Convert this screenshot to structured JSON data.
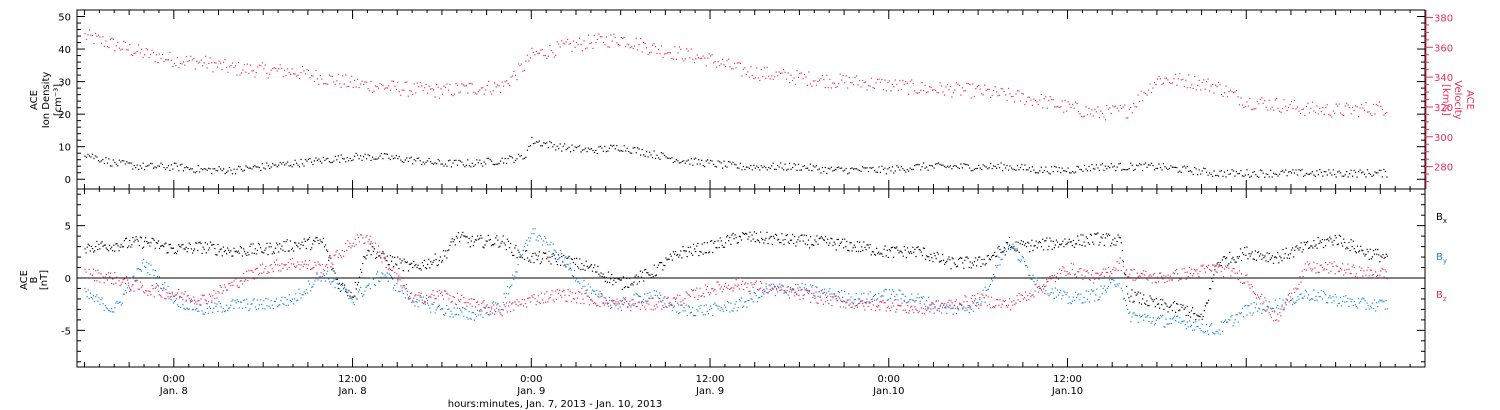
{
  "chart_data": [
    {
      "type": "scatter",
      "panel": "ion-density-velocity",
      "ylabel_left": [
        "ACE",
        "Ion Density",
        "[cm⁻³]"
      ],
      "ylabel_right": [
        "ACE",
        "Velocity",
        "[km/s]"
      ],
      "ylim_left": [
        -3,
        52
      ],
      "yticks_left": [
        0,
        10,
        20,
        30,
        40,
        50
      ],
      "ylim_right": [
        265,
        385
      ],
      "yticks_right": [
        280,
        300,
        320,
        340,
        360,
        380
      ],
      "xlim_hours": [
        -6.5,
        84
      ],
      "series": [
        {
          "axis": "right",
          "color": "#e8305e",
          "points": [
            [
              -6,
              368
            ],
            [
              -4,
              362
            ],
            [
              -2,
              356
            ],
            [
              0,
              352
            ],
            [
              2,
              350
            ],
            [
              4,
              346
            ],
            [
              6,
              345
            ],
            [
              8,
              344
            ],
            [
              10,
              340
            ],
            [
              12,
              336
            ],
            [
              14,
              334
            ],
            [
              16,
              332
            ],
            [
              18,
              331
            ],
            [
              20,
              333
            ],
            [
              22,
              334
            ],
            [
              23.5,
              348
            ],
            [
              24,
              355
            ],
            [
              26,
              360
            ],
            [
              28,
              364
            ],
            [
              30,
              366
            ],
            [
              32,
              360
            ],
            [
              34,
              356
            ],
            [
              36,
              352
            ],
            [
              38,
              345
            ],
            [
              40,
              342
            ],
            [
              42,
              340
            ],
            [
              44,
              338
            ],
            [
              46,
              337
            ],
            [
              48,
              335
            ],
            [
              50,
              333
            ],
            [
              52,
              332
            ],
            [
              54,
              331
            ],
            [
              56,
              328
            ],
            [
              58,
              325
            ],
            [
              60,
              320
            ],
            [
              62,
              316
            ],
            [
              64,
              318
            ],
            [
              66,
              339
            ],
            [
              68,
              338
            ],
            [
              70,
              334
            ],
            [
              72,
              324
            ],
            [
              74,
              322
            ],
            [
              76,
              319
            ],
            [
              78,
              318
            ],
            [
              80,
              319
            ],
            [
              81.5,
              320
            ]
          ]
        },
        {
          "axis": "left",
          "color": "#000000",
          "points": [
            [
              -6,
              8
            ],
            [
              -4,
              5
            ],
            [
              -2,
              4
            ],
            [
              0,
              4
            ],
            [
              2,
              3
            ],
            [
              4,
              3
            ],
            [
              6,
              4
            ],
            [
              8,
              5
            ],
            [
              10,
              6
            ],
            [
              12,
              7
            ],
            [
              14,
              7
            ],
            [
              16,
              6
            ],
            [
              18,
              5
            ],
            [
              20,
              5
            ],
            [
              22,
              6
            ],
            [
              23.5,
              7
            ],
            [
              24,
              12
            ],
            [
              26,
              10
            ],
            [
              28,
              9
            ],
            [
              30,
              10
            ],
            [
              32,
              8
            ],
            [
              34,
              6
            ],
            [
              36,
              5
            ],
            [
              38,
              4
            ],
            [
              40,
              4
            ],
            [
              42,
              4
            ],
            [
              44,
              3
            ],
            [
              46,
              3
            ],
            [
              48,
              3
            ],
            [
              50,
              4
            ],
            [
              52,
              4
            ],
            [
              54,
              4
            ],
            [
              56,
              4
            ],
            [
              58,
              3
            ],
            [
              60,
              3
            ],
            [
              62,
              4
            ],
            [
              64,
              4
            ],
            [
              66,
              4
            ],
            [
              68,
              3
            ],
            [
              70,
              2
            ],
            [
              72,
              2
            ],
            [
              74,
              2
            ],
            [
              76,
              2
            ],
            [
              78,
              2
            ],
            [
              80,
              2
            ],
            [
              81.5,
              2
            ]
          ]
        }
      ]
    },
    {
      "type": "scatter",
      "panel": "magnetic-field",
      "ylabel_left": [
        "ACE",
        "B",
        "[nT]"
      ],
      "ylim": [
        -8.5,
        8.5
      ],
      "yticks": [
        -5,
        0,
        5
      ],
      "zero_line": true,
      "xlim_hours": [
        -6.5,
        84
      ],
      "series": [
        {
          "name": "Bx",
          "label_main": "B",
          "label_sub": "x",
          "color": "#000000",
          "points": [
            [
              -6,
              3.0
            ],
            [
              -4,
              3.2
            ],
            [
              -2,
              3.5
            ],
            [
              0,
              2.8
            ],
            [
              2,
              3.0
            ],
            [
              4,
              2.6
            ],
            [
              6,
              2.8
            ],
            [
              8,
              3.2
            ],
            [
              10,
              3.5
            ],
            [
              11,
              -0.5
            ],
            [
              12,
              -1.5
            ],
            [
              13,
              3.0
            ],
            [
              14,
              2.0
            ],
            [
              16,
              1.0
            ],
            [
              18,
              2.0
            ],
            [
              19,
              4.0
            ],
            [
              20,
              3.5
            ],
            [
              22,
              3.6
            ],
            [
              23,
              2.5
            ],
            [
              24,
              2.0
            ],
            [
              26,
              1.8
            ],
            [
              28,
              1.0
            ],
            [
              30,
              -0.5
            ],
            [
              32,
              0.5
            ],
            [
              34,
              2.5
            ],
            [
              36,
              3.0
            ],
            [
              38,
              4.0
            ],
            [
              40,
              3.8
            ],
            [
              42,
              3.6
            ],
            [
              44,
              3.4
            ],
            [
              46,
              3.0
            ],
            [
              48,
              2.5
            ],
            [
              50,
              2.6
            ],
            [
              52,
              1.5
            ],
            [
              54,
              1.5
            ],
            [
              56,
              3.0
            ],
            [
              58,
              3.2
            ],
            [
              60,
              3.5
            ],
            [
              62,
              3.8
            ],
            [
              63.5,
              3.6
            ],
            [
              64,
              -1.5
            ],
            [
              66,
              -2.5
            ],
            [
              68,
              -3.0
            ],
            [
              69,
              -4.0
            ],
            [
              70,
              1.5
            ],
            [
              72,
              2.5
            ],
            [
              74,
              2.0
            ],
            [
              76,
              3.0
            ],
            [
              78,
              3.8
            ],
            [
              80,
              2.5
            ],
            [
              81.5,
              2.0
            ]
          ]
        },
        {
          "name": "By",
          "label_main": "B",
          "label_sub": "y",
          "color": "#1c86dc",
          "points": [
            [
              -6,
              -1.5
            ],
            [
              -4,
              -3.0
            ],
            [
              -2,
              1.5
            ],
            [
              0,
              -2.0
            ],
            [
              2,
              -3.0
            ],
            [
              4,
              -2.5
            ],
            [
              6,
              -2.5
            ],
            [
              8,
              -2.0
            ],
            [
              10,
              0.5
            ],
            [
              12,
              -2.0
            ],
            [
              14,
              0.5
            ],
            [
              16,
              -2.0
            ],
            [
              18,
              -3.0
            ],
            [
              20,
              -3.5
            ],
            [
              22,
              -2.5
            ],
            [
              24,
              4.5
            ],
            [
              26,
              2.0
            ],
            [
              28,
              -1.5
            ],
            [
              30,
              -2.5
            ],
            [
              32,
              -1.5
            ],
            [
              34,
              -3.0
            ],
            [
              36,
              -3.0
            ],
            [
              38,
              -2.5
            ],
            [
              40,
              -1.0
            ],
            [
              42,
              -1.0
            ],
            [
              44,
              -1.5
            ],
            [
              46,
              -2.0
            ],
            [
              48,
              -1.5
            ],
            [
              50,
              -2.0
            ],
            [
              52,
              -3.0
            ],
            [
              54,
              -2.5
            ],
            [
              56,
              3.5
            ],
            [
              58,
              -0.5
            ],
            [
              60,
              -2.0
            ],
            [
              62,
              -1.5
            ],
            [
              63.5,
              0.0
            ],
            [
              64,
              -3.5
            ],
            [
              66,
              -4.0
            ],
            [
              68,
              -4.2
            ],
            [
              70,
              -5.0
            ],
            [
              72,
              -3.0
            ],
            [
              74,
              -2.5
            ],
            [
              76,
              -1.5
            ],
            [
              78,
              -2.0
            ],
            [
              80,
              -2.5
            ],
            [
              81.5,
              -2.5
            ]
          ]
        },
        {
          "name": "Bz",
          "label_main": "B",
          "label_sub": "z",
          "color": "#e8305e",
          "points": [
            [
              -6,
              0.5
            ],
            [
              -4,
              0.0
            ],
            [
              -2,
              -1.0
            ],
            [
              0,
              -1.5
            ],
            [
              2,
              -2.0
            ],
            [
              4,
              -0.5
            ],
            [
              6,
              1.0
            ],
            [
              8,
              1.5
            ],
            [
              10,
              1.0
            ],
            [
              12,
              3.5
            ],
            [
              13,
              4.0
            ],
            [
              14,
              2.0
            ],
            [
              16,
              -2.0
            ],
            [
              18,
              -1.5
            ],
            [
              20,
              -2.5
            ],
            [
              22,
              -3.0
            ],
            [
              24,
              -2.0
            ],
            [
              26,
              -1.5
            ],
            [
              28,
              -2.0
            ],
            [
              30,
              -2.5
            ],
            [
              32,
              -2.5
            ],
            [
              34,
              -2.0
            ],
            [
              36,
              -1.0
            ],
            [
              38,
              -0.5
            ],
            [
              40,
              -1.0
            ],
            [
              42,
              -1.5
            ],
            [
              44,
              -2.0
            ],
            [
              46,
              -2.5
            ],
            [
              48,
              -2.5
            ],
            [
              50,
              -3.0
            ],
            [
              52,
              -2.5
            ],
            [
              54,
              -2.0
            ],
            [
              56,
              -2.5
            ],
            [
              58,
              -1.0
            ],
            [
              60,
              1.0
            ],
            [
              62,
              0.0
            ],
            [
              63.5,
              1.5
            ],
            [
              64,
              0.5
            ],
            [
              66,
              0.0
            ],
            [
              68,
              0.5
            ],
            [
              70,
              1.0
            ],
            [
              72,
              0.0
            ],
            [
              74,
              -4.0
            ],
            [
              76,
              1.0
            ],
            [
              78,
              1.0
            ],
            [
              80,
              0.5
            ],
            [
              81.5,
              0.5
            ]
          ]
        }
      ]
    }
  ],
  "x_axis": {
    "ticks": [
      {
        "hour": 0,
        "time": "0:00",
        "day": "Jan. 8"
      },
      {
        "hour": 12,
        "time": "12:00",
        "day": "Jan. 8"
      },
      {
        "hour": 24,
        "time": "0:00",
        "day": "Jan. 9"
      },
      {
        "hour": 36,
        "time": "12:00",
        "day": "Jan. 9"
      },
      {
        "hour": 48,
        "time": "0:00",
        "day": "Jan.10"
      },
      {
        "hour": 60,
        "time": "12:00",
        "day": "Jan.10"
      }
    ],
    "label": "hours:minutes, Jan.  7, 2013 - Jan. 10, 2013"
  }
}
